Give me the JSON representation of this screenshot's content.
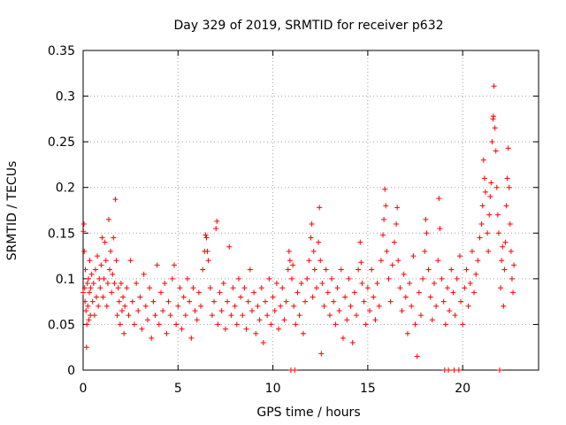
{
  "chart_data": {
    "type": "scatter",
    "title": "Day 329 of 2019, SRMTID for receiver p632",
    "xlabel": "GPS time / hours",
    "ylabel": "SRMTID / TECUs",
    "xlim": [
      0,
      24
    ],
    "ylim": [
      0,
      0.35
    ],
    "xticks": [
      0,
      5,
      10,
      15,
      20
    ],
    "xtick_labels": [
      "0",
      "5",
      "10",
      "15",
      "20"
    ],
    "yticks": [
      0,
      0.05,
      0.1,
      0.15,
      0.2,
      0.25,
      0.3,
      0.35
    ],
    "ytick_labels": [
      "0",
      "0.05",
      "0.1",
      "0.15",
      "0.2",
      "0.25",
      "0.3",
      "0.35"
    ],
    "grid": true,
    "marker": "+",
    "color": "#ff0000",
    "series": [
      {
        "name": "SRMTID",
        "points": [
          [
            0.0,
            0.085
          ],
          [
            0.02,
            0.152
          ],
          [
            0.04,
            0.16
          ],
          [
            0.06,
            0.13
          ],
          [
            0.08,
            0.09
          ],
          [
            0.1,
            0.075
          ],
          [
            0.12,
            0.11
          ],
          [
            0.15,
            0.065
          ],
          [
            0.18,
            0.025
          ],
          [
            0.2,
            0.05
          ],
          [
            0.22,
            0.095
          ],
          [
            0.25,
            0.07
          ],
          [
            0.28,
            0.1
          ],
          [
            0.3,
            0.055
          ],
          [
            0.33,
            0.085
          ],
          [
            0.35,
            0.12
          ],
          [
            0.38,
            0.06
          ],
          [
            0.4,
            0.09
          ],
          [
            0.45,
            0.105
          ],
          [
            0.5,
            0.075
          ],
          [
            0.55,
            0.095
          ],
          [
            0.6,
            0.06
          ],
          [
            0.65,
            0.11
          ],
          [
            0.7,
            0.08
          ],
          [
            0.75,
            0.125
          ],
          [
            0.8,
            0.07
          ],
          [
            0.85,
            0.1
          ],
          [
            0.9,
            0.09
          ],
          [
            0.95,
            0.115
          ],
          [
            1.0,
            0.145
          ],
          [
            1.05,
            0.08
          ],
          [
            1.1,
            0.1
          ],
          [
            1.15,
            0.14
          ],
          [
            1.2,
            0.12
          ],
          [
            1.25,
            0.07
          ],
          [
            1.3,
            0.095
          ],
          [
            1.35,
            0.165
          ],
          [
            1.4,
            0.11
          ],
          [
            1.45,
            0.13
          ],
          [
            1.5,
            0.085
          ],
          [
            1.55,
            0.105
          ],
          [
            1.6,
            0.145
          ],
          [
            1.65,
            0.095
          ],
          [
            1.7,
            0.187
          ],
          [
            1.75,
            0.12
          ],
          [
            1.8,
            0.06
          ],
          [
            1.85,
            0.09
          ],
          [
            1.9,
            0.075
          ],
          [
            1.95,
            0.05
          ],
          [
            2.0,
            0.095
          ],
          [
            2.05,
            0.065
          ],
          [
            2.1,
            0.08
          ],
          [
            2.15,
            0.04
          ],
          [
            2.2,
            0.07
          ],
          [
            2.3,
            0.09
          ],
          [
            2.4,
            0.06
          ],
          [
            2.5,
            0.12
          ],
          [
            2.6,
            0.075
          ],
          [
            2.7,
            0.05
          ],
          [
            2.8,
            0.095
          ],
          [
            2.9,
            0.065
          ],
          [
            3.0,
            0.08
          ],
          [
            3.1,
            0.045
          ],
          [
            3.2,
            0.105
          ],
          [
            3.3,
            0.07
          ],
          [
            3.4,
            0.055
          ],
          [
            3.5,
            0.09
          ],
          [
            3.6,
            0.035
          ],
          [
            3.7,
            0.075
          ],
          [
            3.8,
            0.06
          ],
          [
            3.9,
            0.115
          ],
          [
            4.0,
            0.05
          ],
          [
            4.1,
            0.085
          ],
          [
            4.2,
            0.065
          ],
          [
            4.3,
            0.095
          ],
          [
            4.4,
            0.04
          ],
          [
            4.5,
            0.075
          ],
          [
            4.6,
            0.06
          ],
          [
            4.7,
            0.1
          ],
          [
            4.8,
            0.115
          ],
          [
            4.9,
            0.05
          ],
          [
            5.0,
            0.07
          ],
          [
            5.1,
            0.09
          ],
          [
            5.2,
            0.045
          ],
          [
            5.3,
            0.08
          ],
          [
            5.4,
            0.06
          ],
          [
            5.5,
            0.1
          ],
          [
            5.6,
            0.075
          ],
          [
            5.7,
            0.035
          ],
          [
            5.8,
            0.09
          ],
          [
            5.9,
            0.065
          ],
          [
            6.0,
            0.055
          ],
          [
            6.1,
            0.085
          ],
          [
            6.2,
            0.07
          ],
          [
            6.3,
            0.11
          ],
          [
            6.4,
            0.13
          ],
          [
            6.45,
            0.148
          ],
          [
            6.5,
            0.145
          ],
          [
            6.55,
            0.13
          ],
          [
            6.6,
            0.12
          ],
          [
            6.7,
            0.09
          ],
          [
            6.8,
            0.06
          ],
          [
            6.9,
            0.075
          ],
          [
            7.0,
            0.155
          ],
          [
            7.05,
            0.163
          ],
          [
            7.1,
            0.05
          ],
          [
            7.2,
            0.085
          ],
          [
            7.3,
            0.065
          ],
          [
            7.4,
            0.095
          ],
          [
            7.5,
            0.045
          ],
          [
            7.6,
            0.075
          ],
          [
            7.7,
            0.135
          ],
          [
            7.8,
            0.06
          ],
          [
            7.9,
            0.09
          ],
          [
            8.0,
            0.07
          ],
          [
            8.1,
            0.05
          ],
          [
            8.2,
            0.1
          ],
          [
            8.3,
            0.08
          ],
          [
            8.4,
            0.06
          ],
          [
            8.5,
            0.09
          ],
          [
            8.6,
            0.045
          ],
          [
            8.7,
            0.075
          ],
          [
            8.8,
            0.11
          ],
          [
            8.9,
            0.065
          ],
          [
            9.0,
            0.085
          ],
          [
            9.1,
            0.04
          ],
          [
            9.2,
            0.07
          ],
          [
            9.3,
            0.055
          ],
          [
            9.4,
            0.09
          ],
          [
            9.5,
            0.03
          ],
          [
            9.6,
            0.075
          ],
          [
            9.7,
            0.06
          ],
          [
            9.8,
            0.1
          ],
          [
            9.9,
            0.05
          ],
          [
            10.0,
            0.08
          ],
          [
            10.1,
            0.065
          ],
          [
            10.2,
            0.095
          ],
          [
            10.3,
            0.045
          ],
          [
            10.4,
            0.07
          ],
          [
            10.5,
            0.09
          ],
          [
            10.6,
            0.055
          ],
          [
            10.7,
            0.075
          ],
          [
            10.8,
            0.11
          ],
          [
            10.85,
            0.13
          ],
          [
            10.9,
            0.12
          ],
          [
            10.95,
            0.0
          ],
          [
            11.0,
            0.1
          ],
          [
            11.05,
            0.115
          ],
          [
            11.1,
            0.07
          ],
          [
            11.15,
            0.0
          ],
          [
            11.2,
            0.05
          ],
          [
            11.3,
            0.085
          ],
          [
            11.4,
            0.06
          ],
          [
            11.5,
            0.095
          ],
          [
            11.6,
            0.04
          ],
          [
            11.7,
            0.075
          ],
          [
            11.8,
            0.1
          ],
          [
            11.9,
            0.12
          ],
          [
            12.0,
            0.145
          ],
          [
            12.05,
            0.16
          ],
          [
            12.1,
            0.08
          ],
          [
            12.15,
            0.13
          ],
          [
            12.2,
            0.11
          ],
          [
            12.3,
            0.09
          ],
          [
            12.4,
            0.14
          ],
          [
            12.45,
            0.178
          ],
          [
            12.5,
            0.12
          ],
          [
            12.55,
            0.018
          ],
          [
            12.6,
            0.095
          ],
          [
            12.7,
            0.07
          ],
          [
            12.8,
            0.11
          ],
          [
            12.9,
            0.085
          ],
          [
            13.0,
            0.06
          ],
          [
            13.1,
            0.1
          ],
          [
            13.2,
            0.075
          ],
          [
            13.3,
            0.05
          ],
          [
            13.4,
            0.09
          ],
          [
            13.5,
            0.065
          ],
          [
            13.6,
            0.11
          ],
          [
            13.7,
            0.035
          ],
          [
            13.8,
            0.08
          ],
          [
            13.9,
            0.055
          ],
          [
            14.0,
            0.1
          ],
          [
            14.1,
            0.07
          ],
          [
            14.2,
            0.03
          ],
          [
            14.3,
            0.085
          ],
          [
            14.4,
            0.06
          ],
          [
            14.5,
            0.11
          ],
          [
            14.6,
            0.14
          ],
          [
            14.65,
            0.118
          ],
          [
            14.7,
            0.095
          ],
          [
            14.8,
            0.075
          ],
          [
            14.9,
            0.05
          ],
          [
            15.0,
            0.09
          ],
          [
            15.1,
            0.065
          ],
          [
            15.2,
            0.11
          ],
          [
            15.3,
            0.08
          ],
          [
            15.4,
            0.055
          ],
          [
            15.5,
            0.095
          ],
          [
            15.6,
            0.07
          ],
          [
            15.7,
            0.12
          ],
          [
            15.8,
            0.148
          ],
          [
            15.85,
            0.165
          ],
          [
            15.9,
            0.198
          ],
          [
            15.95,
            0.18
          ],
          [
            16.0,
            0.13
          ],
          [
            16.1,
            0.1
          ],
          [
            16.2,
            0.075
          ],
          [
            16.3,
            0.115
          ],
          [
            16.4,
            0.14
          ],
          [
            16.5,
            0.16
          ],
          [
            16.55,
            0.178
          ],
          [
            16.6,
            0.12
          ],
          [
            16.7,
            0.09
          ],
          [
            16.8,
            0.065
          ],
          [
            16.9,
            0.105
          ],
          [
            17.0,
            0.08
          ],
          [
            17.1,
            0.04
          ],
          [
            17.2,
            0.095
          ],
          [
            17.3,
            0.07
          ],
          [
            17.4,
            0.125
          ],
          [
            17.5,
            0.05
          ],
          [
            17.6,
            0.015
          ],
          [
            17.7,
            0.085
          ],
          [
            17.8,
            0.06
          ],
          [
            17.9,
            0.1
          ],
          [
            18.0,
            0.13
          ],
          [
            18.05,
            0.165
          ],
          [
            18.1,
            0.15
          ],
          [
            18.2,
            0.11
          ],
          [
            18.3,
            0.08
          ],
          [
            18.4,
            0.055
          ],
          [
            18.5,
            0.095
          ],
          [
            18.6,
            0.07
          ],
          [
            18.7,
            0.12
          ],
          [
            18.75,
            0.188
          ],
          [
            18.8,
            0.155
          ],
          [
            18.9,
            0.1
          ],
          [
            19.0,
            0.075
          ],
          [
            19.05,
            0.0
          ],
          [
            19.1,
            0.05
          ],
          [
            19.2,
            0.09
          ],
          [
            19.25,
            0.0
          ],
          [
            19.3,
            0.065
          ],
          [
            19.4,
            0.11
          ],
          [
            19.5,
            0.085
          ],
          [
            19.55,
            0.0
          ],
          [
            19.6,
            0.06
          ],
          [
            19.7,
            0.1
          ],
          [
            19.8,
            0.0
          ],
          [
            19.85,
            0.125
          ],
          [
            19.9,
            0.075
          ],
          [
            20.0,
            0.05
          ],
          [
            20.1,
            0.09
          ],
          [
            20.2,
            0.11
          ],
          [
            20.3,
            0.07
          ],
          [
            20.4,
            0.095
          ],
          [
            20.5,
            0.13
          ],
          [
            20.6,
            0.085
          ],
          [
            20.7,
            0.105
          ],
          [
            20.8,
            0.12
          ],
          [
            20.9,
            0.145
          ],
          [
            21.0,
            0.16
          ],
          [
            21.05,
            0.18
          ],
          [
            21.1,
            0.23
          ],
          [
            21.15,
            0.21
          ],
          [
            21.2,
            0.195
          ],
          [
            21.3,
            0.15
          ],
          [
            21.35,
            0.13
          ],
          [
            21.4,
            0.17
          ],
          [
            21.45,
            0.19
          ],
          [
            21.5,
            0.205
          ],
          [
            21.55,
            0.25
          ],
          [
            21.6,
            0.275
          ],
          [
            21.62,
            0.278
          ],
          [
            21.65,
            0.311
          ],
          [
            21.7,
            0.265
          ],
          [
            21.75,
            0.24
          ],
          [
            21.8,
            0.2
          ],
          [
            21.85,
            0.17
          ],
          [
            21.9,
            0.15
          ],
          [
            21.95,
            0.0
          ],
          [
            22.0,
            0.09
          ],
          [
            22.05,
            0.12
          ],
          [
            22.1,
            0.135
          ],
          [
            22.15,
            0.07
          ],
          [
            22.2,
            0.11
          ],
          [
            22.25,
            0.14
          ],
          [
            22.3,
            0.18
          ],
          [
            22.35,
            0.21
          ],
          [
            22.4,
            0.243
          ],
          [
            22.45,
            0.2
          ],
          [
            22.5,
            0.16
          ],
          [
            22.55,
            0.13
          ],
          [
            22.6,
            0.1
          ],
          [
            22.65,
            0.085
          ],
          [
            22.7,
            0.115
          ]
        ]
      }
    ]
  }
}
